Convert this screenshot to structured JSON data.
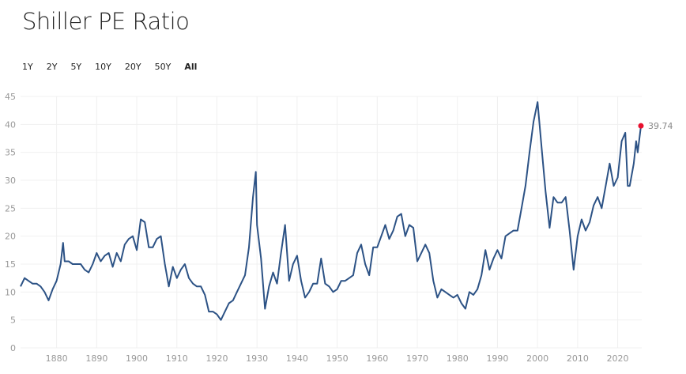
{
  "header": {
    "title": "Shiller PE Ratio"
  },
  "ranges": [
    {
      "label": "1Y"
    },
    {
      "label": "2Y"
    },
    {
      "label": "5Y"
    },
    {
      "label": "10Y"
    },
    {
      "label": "20Y"
    },
    {
      "label": "50Y"
    },
    {
      "label": "All",
      "active": true
    }
  ],
  "colors": {
    "line": "#2c5285",
    "last_point": "#e8102e",
    "grid": "#f0f0f0"
  },
  "chart_data": {
    "type": "line",
    "title": "Shiller PE Ratio",
    "xlabel": "",
    "ylabel": "",
    "xlim": [
      1871,
      2026
    ],
    "ylim": [
      0,
      45
    ],
    "yticks": [
      0,
      5,
      10,
      15,
      20,
      25,
      30,
      35,
      40,
      45
    ],
    "xticks": [
      1880,
      1890,
      1900,
      1910,
      1920,
      1930,
      1940,
      1950,
      1960,
      1970,
      1980,
      1990,
      2000,
      2010,
      2020
    ],
    "last_value_label": "39.74",
    "x": [
      1871,
      1872,
      1873,
      1874,
      1875,
      1876,
      1877,
      1878,
      1879,
      1880,
      1881,
      1881.6,
      1882,
      1883,
      1884,
      1885,
      1886,
      1887,
      1888,
      1889,
      1890,
      1891,
      1892,
      1893,
      1894,
      1895,
      1896,
      1897,
      1898,
      1899,
      1900,
      1901,
      1902,
      1903,
      1904,
      1905,
      1906,
      1907,
      1908,
      1909,
      1910,
      1911,
      1912,
      1913,
      1914,
      1915,
      1916,
      1917,
      1918,
      1919,
      1920,
      1921,
      1922,
      1923,
      1924,
      1925,
      1926,
      1927,
      1928,
      1929,
      1929.7,
      1930,
      1931,
      1932,
      1933,
      1934,
      1935,
      1936,
      1937,
      1938,
      1939,
      1940,
      1941,
      1942,
      1943,
      1944,
      1945,
      1946,
      1947,
      1948,
      1949,
      1950,
      1951,
      1952,
      1953,
      1954,
      1955,
      1956,
      1957,
      1958,
      1959,
      1960,
      1961,
      1962,
      1963,
      1964,
      1965,
      1966,
      1967,
      1968,
      1969,
      1970,
      1971,
      1972,
      1973,
      1974,
      1975,
      1976,
      1977,
      1978,
      1979,
      1980,
      1981,
      1982,
      1983,
      1984,
      1985,
      1986,
      1987,
      1988,
      1989,
      1990,
      1991,
      1992,
      1993,
      1994,
      1995,
      1996,
      1997,
      1998,
      1999,
      2000,
      2001,
      2002,
      2003,
      2004,
      2005,
      2006,
      2007,
      2008,
      2009,
      2010,
      2011,
      2012,
      2013,
      2014,
      2015,
      2016,
      2017,
      2018,
      2019,
      2020,
      2021,
      2021.9,
      2022.5,
      2023,
      2024,
      2024.6,
      2025,
      2025.8
    ],
    "values": [
      11,
      12.5,
      12,
      11.5,
      11.5,
      11,
      10,
      8.5,
      10.5,
      12,
      15,
      18.8,
      15.5,
      15.5,
      15,
      15,
      15,
      14,
      13.5,
      15,
      17,
      15.5,
      16.5,
      17,
      14.5,
      17,
      15.5,
      18.5,
      19.5,
      20,
      17.5,
      23,
      22.5,
      18,
      18,
      19.5,
      20,
      15,
      11,
      14.5,
      12.5,
      14,
      15,
      12.5,
      11.5,
      11,
      11,
      9.5,
      6.5,
      6.5,
      6,
      5,
      6.5,
      8,
      8.5,
      10,
      11.5,
      13,
      18,
      27,
      31.5,
      22,
      16,
      7,
      11,
      13.5,
      11.5,
      17,
      22,
      12,
      15,
      16.5,
      12,
      9,
      10,
      11.5,
      11.5,
      16,
      11.5,
      11,
      10,
      10.5,
      12,
      12,
      12.5,
      13,
      17,
      18.5,
      15,
      13,
      18,
      18,
      20,
      22,
      19.5,
      21,
      23.5,
      24,
      20,
      22,
      21.5,
      15.5,
      17,
      18.5,
      17,
      12,
      9,
      10.5,
      10,
      9.5,
      9,
      9.5,
      8,
      7,
      10,
      9.5,
      10.5,
      13,
      17.5,
      14,
      16,
      17.5,
      16,
      20,
      20.5,
      21,
      21,
      25,
      29,
      35,
      40.5,
      44,
      36,
      28,
      21.5,
      27,
      26,
      26,
      27,
      21,
      14,
      20,
      23,
      21,
      22.5,
      25.5,
      27,
      25,
      29,
      33,
      29,
      30.5,
      37,
      38.5,
      29,
      29,
      33,
      37,
      35,
      39.74
    ]
  }
}
